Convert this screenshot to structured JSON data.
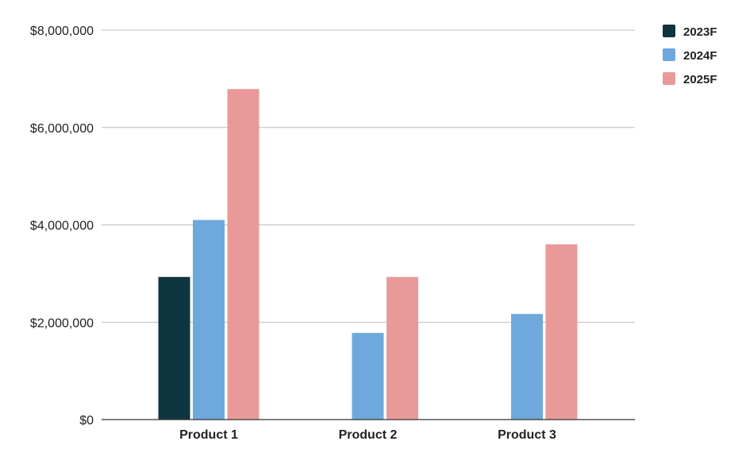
{
  "chart_data": {
    "type": "bar",
    "title": "",
    "xlabel": "",
    "ylabel": "",
    "categories": [
      "Product 1",
      "Product 2",
      "Product 3"
    ],
    "series": [
      {
        "name": "2023F",
        "color": "#0f3540",
        "values": [
          2930000,
          null,
          null
        ]
      },
      {
        "name": "2024F",
        "color": "#6fa8dc",
        "values": [
          4100000,
          1780000,
          2170000
        ]
      },
      {
        "name": "2025F",
        "color": "#ea9999",
        "values": [
          6790000,
          2930000,
          3600000
        ]
      }
    ],
    "ylim": [
      0,
      8000000
    ],
    "yticks": [
      0,
      2000000,
      4000000,
      6000000,
      8000000
    ],
    "ytick_labels": [
      "$0",
      "$2,000,000",
      "$4,000,000",
      "$6,000,000",
      "$8,000,000"
    ],
    "grid": true,
    "legend_position": "top-right"
  }
}
